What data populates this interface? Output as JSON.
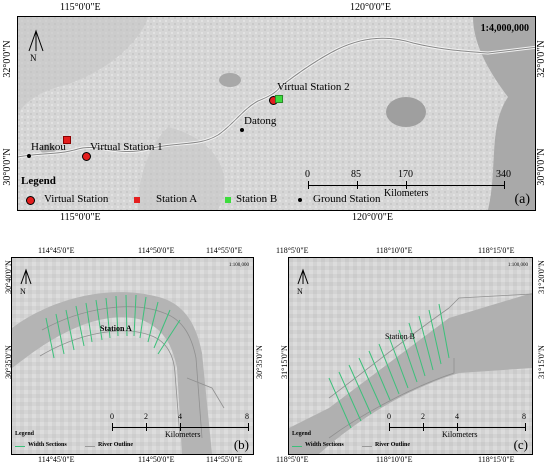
{
  "panel_a": {
    "label": "(a)",
    "scale": "1:4,000,000",
    "top_coords": [
      "115°0'0\"E",
      "120°0'0\"E"
    ],
    "bottom_coords": [
      "115°0'0\"E",
      "120°0'0\"E"
    ],
    "left_coords": [
      "32°0'0\"N",
      "30°0'0\"N"
    ],
    "right_coords": [
      "32°0'0\"N",
      "30°0'0\"N"
    ],
    "north": "N",
    "place_labels": {
      "virtual_station_2": "Virtual Station 2",
      "datong": "Datong",
      "hankou": "Hankou",
      "virtual_station_1": "Virtual Station 1"
    },
    "scalebar": {
      "ticks": [
        "0",
        "85",
        "170",
        "340"
      ],
      "unit": "Kilometers"
    },
    "legend": {
      "title": "Legend",
      "items": [
        {
          "label": "Virtual Station",
          "color": "#e41e1e",
          "shape": "circle"
        },
        {
          "label": "Station A",
          "color": "#e41e1e",
          "shape": "square"
        },
        {
          "label": "Station B",
          "color": "#3ddc3d",
          "shape": "square"
        },
        {
          "label": "Ground Station",
          "color": "#000000",
          "shape": "dot"
        }
      ]
    }
  },
  "panel_b": {
    "label": "(b)",
    "scale": "1:100,000",
    "top_coords": [
      "114°45'0\"E",
      "114°50'0\"E",
      "114°55'0\"E"
    ],
    "bottom_coords": [
      "114°45'0\"E",
      "114°50'0\"E",
      "114°55'0\"E"
    ],
    "left_coords": [
      "30°40'0\"N",
      "30°35'0\"N"
    ],
    "right_coords": [
      "30°35'0\"N"
    ],
    "north": "N",
    "station_label": "Station A",
    "scalebar": {
      "ticks": [
        "0",
        "2",
        "4",
        "8"
      ],
      "unit": "Kilometers"
    },
    "legend": {
      "title": "Legend",
      "width_sections": "Width Sections",
      "river_outline": "River Outline"
    }
  },
  "panel_c": {
    "label": "(c)",
    "scale": "1:100,000",
    "top_coords": [
      "118°5'0\"E",
      "118°10'0\"E",
      "118°15'0\"E"
    ],
    "bottom_coords": [
      "118°5'0\"E",
      "118°10'0\"E",
      "118°15'0\"E"
    ],
    "left_coords": [
      "31°15'0\"N"
    ],
    "right_coords": [
      "31°20'0\"N",
      "31°15'0\"N"
    ],
    "north": "N",
    "station_label": "Station B",
    "scalebar": {
      "ticks": [
        "0",
        "2",
        "4",
        "8"
      ],
      "unit": "Kilometers"
    },
    "legend": {
      "title": "Legend",
      "width_sections": "Width Sections",
      "river_outline": "River Outline"
    }
  },
  "colors": {
    "width_section": "#3cc07a",
    "river_outline": "#9a9a9a"
  }
}
